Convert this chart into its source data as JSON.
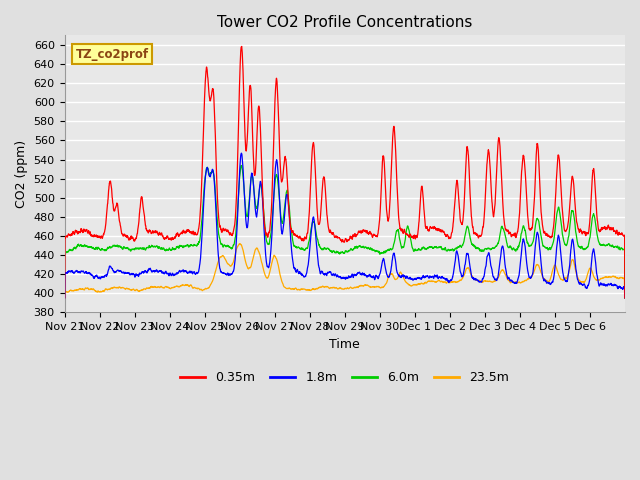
{
  "title": "Tower CO2 Profile Concentrations",
  "xlabel": "Time",
  "ylabel": "CO2 (ppm)",
  "ylim": [
    380,
    670
  ],
  "yticks": [
    380,
    400,
    420,
    440,
    460,
    480,
    500,
    520,
    540,
    560,
    580,
    600,
    620,
    640,
    660
  ],
  "legend_label": "TZ_co2prof",
  "series_labels": [
    "0.35m",
    "1.8m",
    "6.0m",
    "23.5m"
  ],
  "series_colors": [
    "#ff0000",
    "#0000ff",
    "#00cc00",
    "#ffaa00"
  ],
  "background_color": "#e0e0e0",
  "plot_bg_color": "#e8e8e8",
  "n_days": 16,
  "n_points": 3000,
  "xtick_labels": [
    "Nov 21",
    "Nov 22",
    "Nov 23",
    "Nov 24",
    "Nov 25",
    "Nov 26",
    "Nov 27",
    "Nov 28",
    "Nov 29",
    "Nov 30",
    "Dec 1",
    "Dec 2",
    "Dec 3",
    "Dec 4",
    "Dec 5",
    "Dec 6"
  ],
  "title_fontsize": 11,
  "axis_fontsize": 9,
  "tick_fontsize": 8
}
